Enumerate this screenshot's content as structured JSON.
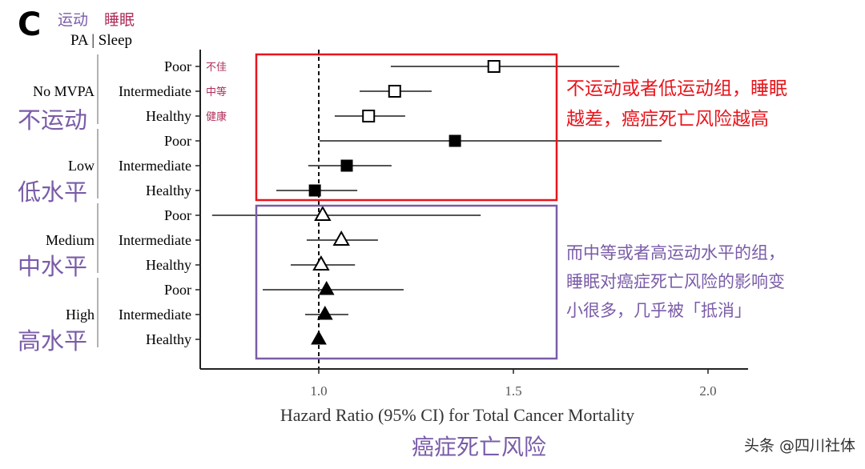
{
  "header": {
    "panel_letter": "C",
    "pa_cn": "运动",
    "sleep_cn": "睡眠",
    "column_header": "PA | Sleep"
  },
  "sleep_cn_labels": [
    "不佳",
    "中等",
    "健康"
  ],
  "annotations": {
    "red_box_text": [
      "不运动或者低运动组，睡眠",
      "越差，癌症死亡风险越高"
    ],
    "purple_box_text": [
      "而中等或者高运动水平的组，",
      "睡眠对癌症死亡风险的影响变",
      "小很多，几乎被「抵消」"
    ],
    "xlabel_cn": "癌症死亡风险"
  },
  "watermark": "头条 @四川社体",
  "colors": {
    "red": "#e8141c",
    "purple": "#7a5ca8",
    "crimson": "#b0305a",
    "ci_line": "#555555"
  },
  "chart_data": {
    "type": "forest",
    "xlabel": "Hazard Ratio (95% CI) for Total Cancer Mortality",
    "xlim": [
      0.706,
      2.1
    ],
    "xticks": [
      1.0,
      1.5,
      2.0
    ],
    "xtick_labels": [
      "1.0",
      "1.5",
      "2.0"
    ],
    "reference_line": 1.0,
    "grid": false,
    "groups": [
      {
        "name": "No MVPA",
        "name_cn": "不运动",
        "marker": "open-square",
        "rows": [
          {
            "label": "Poor",
            "hr": 1.45,
            "lo": 1.185,
            "hi": 1.772
          },
          {
            "label": "Intermediate",
            "hr": 1.195,
            "lo": 1.105,
            "hi": 1.29
          },
          {
            "label": "Healthy",
            "hr": 1.128,
            "lo": 1.041,
            "hi": 1.222
          }
        ]
      },
      {
        "name": "Low",
        "name_cn": "低水平",
        "marker": "filled-square",
        "rows": [
          {
            "label": "Poor",
            "hr": 1.35,
            "lo": 1.002,
            "hi": 1.881
          },
          {
            "label": "Intermediate",
            "hr": 1.072,
            "lo": 0.973,
            "hi": 1.187
          },
          {
            "label": "Healthy",
            "hr": 0.99,
            "lo": 0.891,
            "hi": 1.099
          }
        ]
      },
      {
        "name": "Medium",
        "name_cn": "中水平",
        "marker": "open-triangle",
        "rows": [
          {
            "label": "Poor",
            "hr": 1.01,
            "lo": 0.726,
            "hi": 1.416
          },
          {
            "label": "Intermediate",
            "hr": 1.058,
            "lo": 0.969,
            "hi": 1.152
          },
          {
            "label": "Healthy",
            "hr": 1.006,
            "lo": 0.928,
            "hi": 1.093
          }
        ]
      },
      {
        "name": "High",
        "name_cn": "高水平",
        "marker": "filled-triangle",
        "rows": [
          {
            "label": "Poor",
            "hr": 1.02,
            "lo": 0.856,
            "hi": 1.218
          },
          {
            "label": "Intermediate",
            "hr": 1.016,
            "lo": 0.965,
            "hi": 1.076
          },
          {
            "label": "Healthy",
            "hr": 1.0,
            "lo": null,
            "hi": null
          }
        ]
      }
    ]
  }
}
